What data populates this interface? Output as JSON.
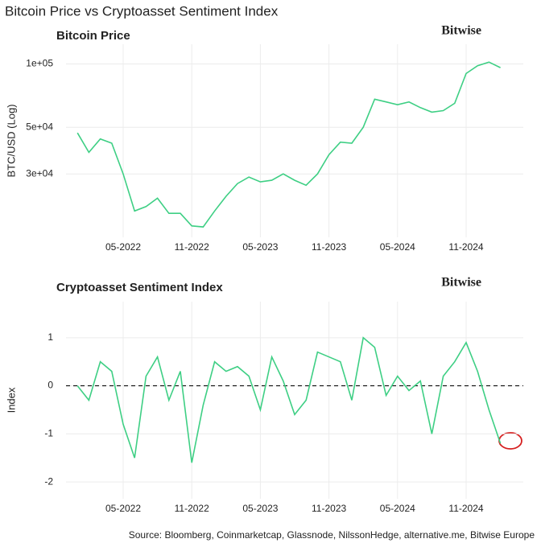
{
  "title": "Bitcoin Price vs Cryptoasset Sentiment Index",
  "source": "Source: Bloomberg, Coinmarketcap, Glassnode, NilssonHedge, alternative.me, Bitwise Europe",
  "chart_data": [
    {
      "type": "line",
      "title": "Bitcoin Price",
      "logo": "Bitwise",
      "y_label": "BTC/USD (Log)",
      "log_scale": true,
      "grid": true,
      "color": "#3ecf84",
      "x": [
        "2022-01",
        "2022-02",
        "2022-03",
        "2022-04",
        "2022-05",
        "2022-06",
        "2022-07",
        "2022-08",
        "2022-09",
        "2022-10",
        "2022-11",
        "2022-12",
        "2023-01",
        "2023-02",
        "2023-03",
        "2023-04",
        "2023-05",
        "2023-06",
        "2023-07",
        "2023-08",
        "2023-09",
        "2023-10",
        "2023-11",
        "2023-12",
        "2024-01",
        "2024-02",
        "2024-03",
        "2024-04",
        "2024-05",
        "2024-06",
        "2024-07",
        "2024-08",
        "2024-09",
        "2024-10",
        "2024-11",
        "2024-12",
        "2025-01",
        "2025-02"
      ],
      "values": [
        47000,
        38000,
        44000,
        42000,
        30000,
        20000,
        21000,
        23000,
        19500,
        19500,
        17000,
        16800,
        20000,
        23500,
        27000,
        29000,
        27500,
        28000,
        30000,
        28000,
        26500,
        30000,
        37000,
        42500,
        42000,
        50000,
        68000,
        66000,
        64000,
        66000,
        62000,
        59000,
        60000,
        65000,
        90000,
        98000,
        102000,
        96000
      ],
      "xlim": [
        "2021-12",
        "2025-04"
      ],
      "xticks": [
        {
          "value": "2022-05",
          "label": "05-2022"
        },
        {
          "value": "2022-11",
          "label": "11-2022"
        },
        {
          "value": "2023-05",
          "label": "05-2023"
        },
        {
          "value": "2023-11",
          "label": "11-2023"
        },
        {
          "value": "2024-05",
          "label": "05-2024"
        },
        {
          "value": "2024-11",
          "label": "11-2024"
        }
      ],
      "ylim": [
        15000,
        124000
      ],
      "yticks": [
        {
          "value": 30000,
          "label": "3e+04"
        },
        {
          "value": 50000,
          "label": "5e+04"
        },
        {
          "value": 100000,
          "label": "1e+05"
        }
      ]
    },
    {
      "type": "line",
      "title": "Cryptoasset Sentiment Index",
      "logo": "Bitwise",
      "y_label": "Index",
      "log_scale": false,
      "grid": true,
      "color": "#3ecf84",
      "hline": 0,
      "x": [
        "2022-01",
        "2022-02",
        "2022-03",
        "2022-04",
        "2022-05",
        "2022-06",
        "2022-07",
        "2022-08",
        "2022-09",
        "2022-10",
        "2022-11",
        "2022-12",
        "2023-01",
        "2023-02",
        "2023-03",
        "2023-04",
        "2023-05",
        "2023-06",
        "2023-07",
        "2023-08",
        "2023-09",
        "2023-10",
        "2023-11",
        "2023-12",
        "2024-01",
        "2024-02",
        "2024-03",
        "2024-04",
        "2024-05",
        "2024-06",
        "2024-07",
        "2024-08",
        "2024-09",
        "2024-10",
        "2024-11",
        "2024-12",
        "2025-01",
        "2025-02"
      ],
      "values": [
        0.0,
        -0.3,
        0.5,
        0.3,
        -0.8,
        -1.5,
        0.2,
        0.6,
        -0.3,
        0.3,
        -1.6,
        -0.4,
        0.5,
        0.3,
        0.4,
        0.2,
        -0.5,
        0.6,
        0.1,
        -0.6,
        -0.3,
        0.7,
        0.6,
        0.5,
        -0.3,
        1.0,
        0.8,
        -0.2,
        0.2,
        -0.1,
        0.1,
        -1.0,
        0.2,
        0.5,
        0.9,
        0.3,
        -0.5,
        -1.2
      ],
      "xlim": [
        "2021-12",
        "2025-04"
      ],
      "xticks": [
        {
          "value": "2022-05",
          "label": "05-2022"
        },
        {
          "value": "2022-11",
          "label": "11-2022"
        },
        {
          "value": "2023-05",
          "label": "05-2023"
        },
        {
          "value": "2023-11",
          "label": "11-2023"
        },
        {
          "value": "2024-05",
          "label": "05-2024"
        },
        {
          "value": "2024-11",
          "label": "11-2024"
        }
      ],
      "ylim": [
        -2.35,
        1.75
      ],
      "yticks": [
        -2,
        -1,
        0,
        1
      ]
    }
  ]
}
